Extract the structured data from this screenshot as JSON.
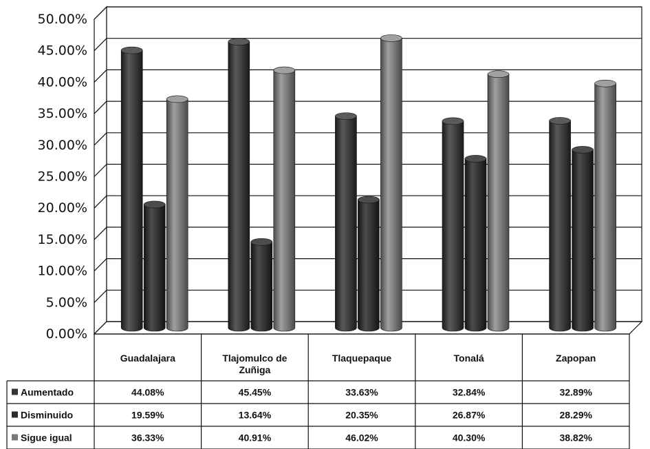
{
  "chart_data": {
    "type": "bar",
    "categories": [
      "Guadalajara",
      "Tlajomulco de Zuñiga",
      "Tlaquepaque",
      "Tonalá",
      "Zapopan"
    ],
    "category_label_lines": [
      [
        "Guadalajara"
      ],
      [
        "Tlajomulco de",
        "Zuñiga"
      ],
      [
        "Tlaquepaque"
      ],
      [
        "Tonalá"
      ],
      [
        "Zapopan"
      ]
    ],
    "series": [
      {
        "name": "Aumentado",
        "values": [
          44.08,
          45.45,
          33.63,
          32.84,
          32.89
        ],
        "labels": [
          "44.08%",
          "45.45%",
          "33.63%",
          "32.84%",
          "32.89%"
        ]
      },
      {
        "name": "Disminuido",
        "values": [
          19.59,
          13.64,
          20.35,
          26.87,
          28.29
        ],
        "labels": [
          "19.59%",
          "13.64%",
          "20.35%",
          "26.87%",
          "28.29%"
        ]
      },
      {
        "name": "Sigue igual",
        "values": [
          36.33,
          40.91,
          46.02,
          40.3,
          38.82
        ],
        "labels": [
          "36.33%",
          "40.91%",
          "46.02%",
          "40.30%",
          "38.82%"
        ]
      }
    ],
    "y_ticks": [
      "0.00%",
      "5.00%",
      "10.00%",
      "15.00%",
      "20.00%",
      "25.00%",
      "30.00%",
      "35.00%",
      "40.00%",
      "45.00%",
      "50.00%"
    ],
    "ylim": [
      0,
      50
    ],
    "title": "",
    "xlabel": "",
    "ylabel": "",
    "grid": true,
    "legend": "data-table",
    "colors": {
      "series": [
        "#353535",
        "#2a2a2a",
        "#777777"
      ],
      "series_dark": [
        "#1a1a1a",
        "#141414",
        "#4a4a4a"
      ],
      "series_light": [
        "#5a5a5a",
        "#4c4c4c",
        "#a0a0a0"
      ],
      "grid": "#111111",
      "wall": "#ffffff"
    }
  }
}
